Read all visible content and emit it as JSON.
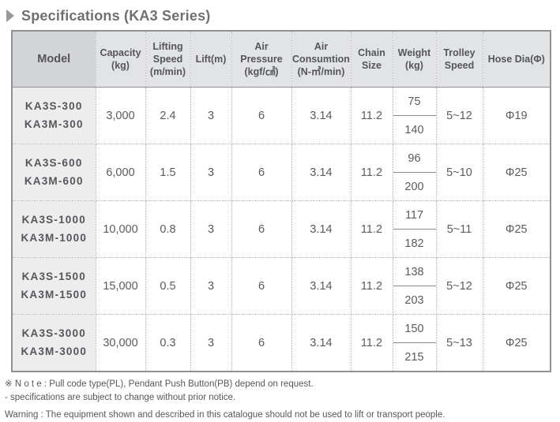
{
  "page": {
    "title": "Specifications (KA3 Series)"
  },
  "table": {
    "columns": [
      {
        "id": "model",
        "lines": [
          "Model"
        ]
      },
      {
        "id": "capacity",
        "lines": [
          "Capacity",
          "(kg)"
        ]
      },
      {
        "id": "lifting_speed",
        "lines": [
          "Lifting",
          "Speed",
          "(m/min)"
        ]
      },
      {
        "id": "lift",
        "lines": [
          "Lift(m)"
        ]
      },
      {
        "id": "air_pressure",
        "lines": [
          "Air",
          "Pressure",
          "(kgf/㎠)"
        ]
      },
      {
        "id": "air_consumption",
        "lines": [
          "Air",
          "Consumtion",
          "(N-㎥/min)"
        ]
      },
      {
        "id": "chain_size",
        "lines": [
          "Chain",
          "Size"
        ]
      },
      {
        "id": "weight",
        "lines": [
          "Weight",
          "(kg)"
        ]
      },
      {
        "id": "trolley_speed",
        "lines": [
          "Trolley",
          "Speed"
        ]
      },
      {
        "id": "hose_dia",
        "lines": [
          "Hose Dia(Φ)"
        ]
      }
    ],
    "value_order": [
      "capacity",
      "lifting_speed",
      "lift",
      "air_pressure",
      "air_consumption",
      "chain_size"
    ],
    "rows": [
      {
        "models": [
          "KA3S-300",
          "KA3M-300"
        ],
        "capacity": "3,000",
        "lifting_speed": "2.4",
        "lift": "3",
        "air_pressure": "6",
        "air_consumption": "3.14",
        "chain_size": "11.2",
        "weight_top": "75",
        "weight_bottom": "140",
        "trolley_speed": "5~12",
        "hose_dia": "Φ19"
      },
      {
        "models": [
          "KA3S-600",
          "KA3M-600"
        ],
        "capacity": "6,000",
        "lifting_speed": "1.5",
        "lift": "3",
        "air_pressure": "6",
        "air_consumption": "3.14",
        "chain_size": "11.2",
        "weight_top": "96",
        "weight_bottom": "200",
        "trolley_speed": "5~10",
        "hose_dia": "Φ25"
      },
      {
        "models": [
          "KA3S-1000",
          "KA3M-1000"
        ],
        "capacity": "10,000",
        "lifting_speed": "0.8",
        "lift": "3",
        "air_pressure": "6",
        "air_consumption": "3.14",
        "chain_size": "11.2",
        "weight_top": "117",
        "weight_bottom": "182",
        "trolley_speed": "5~11",
        "hose_dia": "Φ25"
      },
      {
        "models": [
          "KA3S-1500",
          "KA3M-1500"
        ],
        "capacity": "15,000",
        "lifting_speed": "0.5",
        "lift": "3",
        "air_pressure": "6",
        "air_consumption": "3.14",
        "chain_size": "11.2",
        "weight_top": "138",
        "weight_bottom": "203",
        "trolley_speed": "5~12",
        "hose_dia": "Φ25"
      },
      {
        "models": [
          "KA3S-3000",
          "KA3M-3000"
        ],
        "capacity": "30,000",
        "lifting_speed": "0.3",
        "lift": "3",
        "air_pressure": "6",
        "air_consumption": "3.14",
        "chain_size": "11.2",
        "weight_top": "150",
        "weight_bottom": "215",
        "trolley_speed": "5~13",
        "hose_dia": "Φ25"
      }
    ]
  },
  "notes": [
    "※ N o t e : Pull code type(PL), Pendant Push Button(PB) depend on request.",
    "- specifications are subject to change without prior notice.",
    "Warning : The equipment shown and described in this catalogue should not be used to lift or transport people."
  ]
}
